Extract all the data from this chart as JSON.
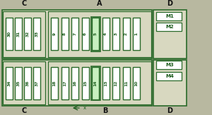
{
  "bg_color": "#b8b8a0",
  "fuse_fill": "#ffffff",
  "fuse_edge": "#2a6a2a",
  "highlight_fill": "#c8f0c0",
  "highlight_edge": "#2a6a2a",
  "section_fill": "#d8d8c0",
  "section_edge": "#2a6a2a",
  "relay_fill": "#ffffff",
  "relay_edge": "#2a6a2a",
  "text_color": "#1a5a1a",
  "label_color": "#111111",
  "top_C_fuses": [
    "30",
    "31",
    "32",
    "33"
  ],
  "top_A_fuses": [
    "9",
    "8",
    "7",
    "6",
    "5",
    "4",
    "3",
    "2",
    "1"
  ],
  "top_A_highlight_idx": [
    4
  ],
  "bot_C_fuses": [
    "34",
    "35",
    "36",
    "37"
  ],
  "bot_A_fuses": [
    "18",
    "17",
    "16",
    "15",
    "14",
    "13",
    "12",
    "11",
    "10"
  ],
  "bot_A_highlight_idx": [
    4
  ],
  "relay_labels": [
    "M1",
    "M2",
    "M3",
    "M4"
  ]
}
